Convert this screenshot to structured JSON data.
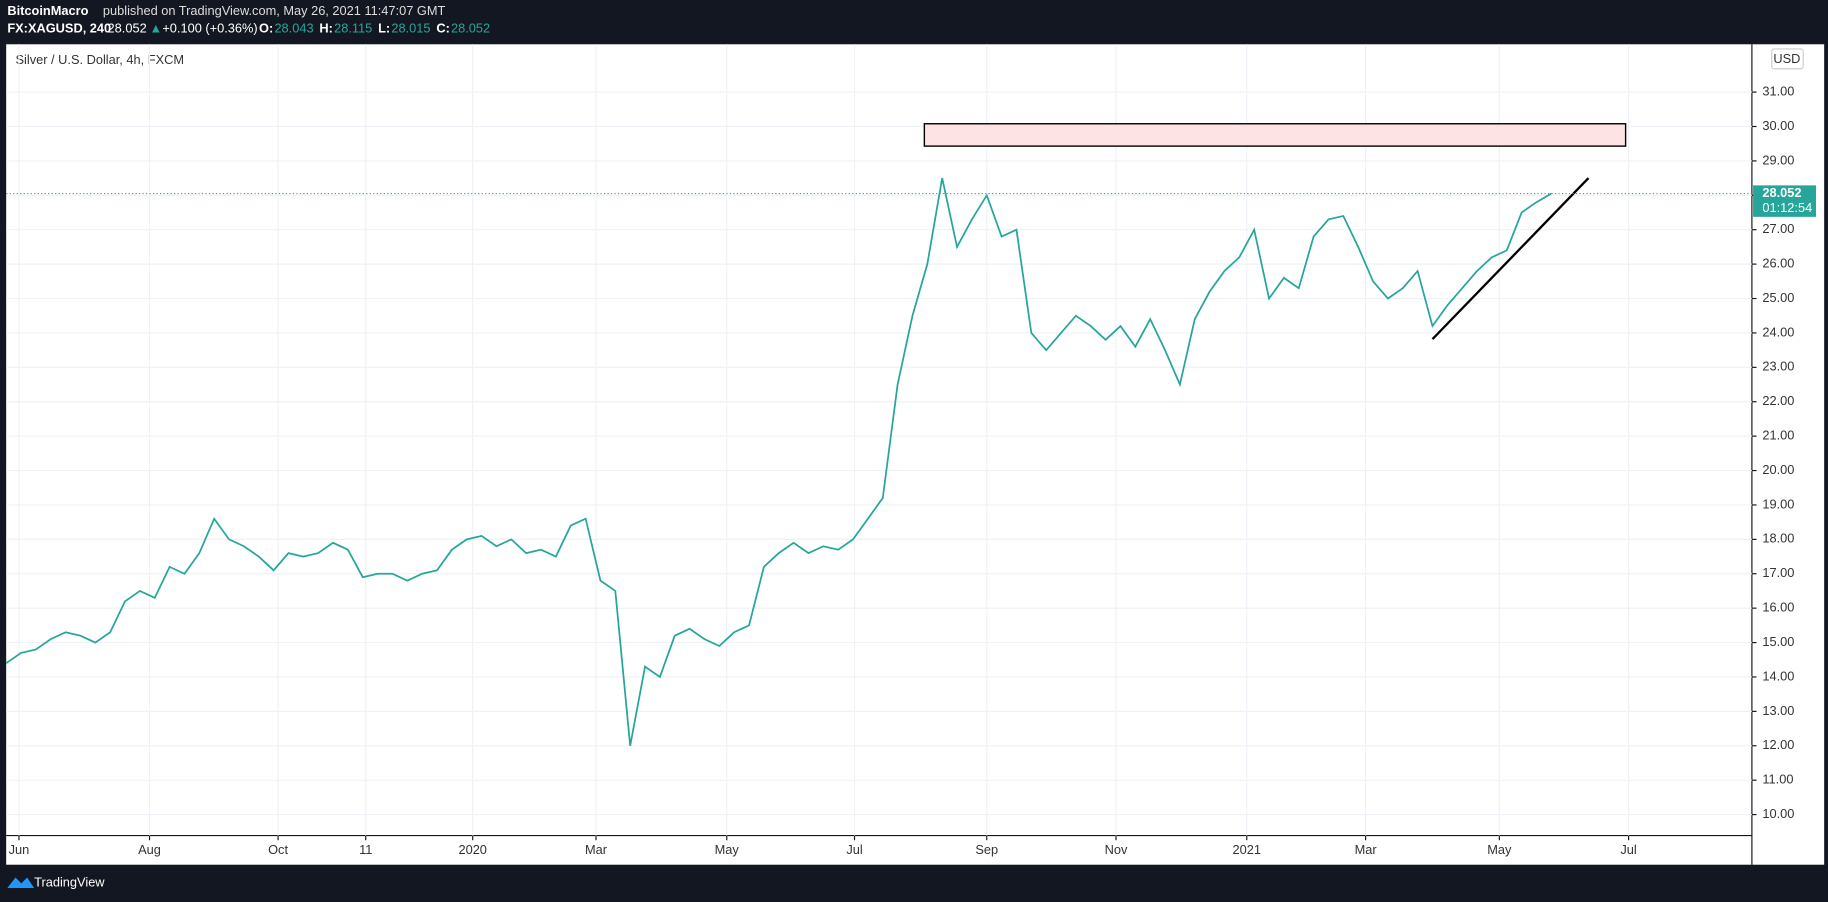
{
  "header": {
    "author": "BitcoinMacro",
    "published": "published on TradingView.com, May 26, 2021 11:47:07 GMT",
    "symbol": "FX:XAGUSD, 240",
    "last": "28.052",
    "change": "+0.100 (+0.36%)",
    "ohlc": [
      {
        "label": "O:",
        "value": "28.043"
      },
      {
        "label": "H:",
        "value": "28.115"
      },
      {
        "label": "L:",
        "value": "28.015"
      },
      {
        "label": "C:",
        "value": "28.052"
      }
    ]
  },
  "footer": {
    "brand": "TradingView"
  },
  "chart_data": {
    "type": "line",
    "title": "Silver / U.S. Dollar, 4h, FXCM",
    "currency": "USD",
    "series": [
      {
        "name": "XAGUSD",
        "color": "#26a69a",
        "values": [
          14.4,
          14.7,
          14.8,
          15.1,
          15.3,
          15.2,
          15.0,
          15.3,
          16.2,
          16.5,
          16.3,
          17.2,
          17.0,
          17.6,
          18.6,
          18.0,
          17.8,
          17.5,
          17.1,
          17.6,
          17.5,
          17.6,
          17.9,
          17.7,
          16.9,
          17.0,
          17.0,
          16.8,
          17.0,
          17.1,
          17.7,
          18.0,
          18.1,
          17.8,
          18.0,
          17.6,
          17.7,
          17.5,
          18.4,
          18.6,
          16.8,
          16.5,
          12.0,
          14.3,
          14.0,
          15.2,
          15.4,
          15.1,
          14.9,
          15.3,
          15.5,
          17.2,
          17.6,
          17.9,
          17.6,
          17.8,
          17.7,
          18.0,
          18.6,
          19.2,
          22.5,
          24.5,
          26.0,
          28.5,
          26.5,
          27.3,
          28.0,
          26.8,
          27.0,
          24.0,
          23.5,
          24.0,
          24.5,
          24.2,
          23.8,
          24.2,
          23.6,
          24.4,
          23.5,
          22.5,
          24.4,
          25.2,
          25.8,
          26.2,
          27.0,
          25.0,
          25.6,
          25.3,
          26.8,
          27.3,
          27.4,
          26.5,
          25.5,
          25.0,
          25.3,
          25.8,
          24.2,
          24.8,
          25.3,
          25.8,
          26.2,
          26.4,
          27.5,
          27.8,
          28.052
        ]
      }
    ],
    "last_price": {
      "price": 28.052,
      "countdown": "01:12:54"
    },
    "rectangle": {
      "x": [
        61.8,
        109.0
      ],
      "y": [
        29.43,
        30.08
      ],
      "color": "#fde3e3"
    },
    "trend_line": {
      "x": [
        96.0,
        106.5
      ],
      "y": [
        23.82,
        28.5
      ]
    },
    "xlim": [
      0,
      117.5
    ],
    "ylim": [
      9.39,
      32.39
    ],
    "xticks": [
      {
        "value": 0.86,
        "label": "Jun"
      },
      {
        "value": 9.65,
        "label": "Aug"
      },
      {
        "value": 18.3,
        "label": "Oct"
      },
      {
        "value": 24.2,
        "label": "11"
      },
      {
        "value": 31.4,
        "label": "2020"
      },
      {
        "value": 39.7,
        "label": "Mar"
      },
      {
        "value": 48.5,
        "label": "May"
      },
      {
        "value": 57.1,
        "label": "Jul"
      },
      {
        "value": 66.0,
        "label": "Sep"
      },
      {
        "value": 74.7,
        "label": "Nov"
      },
      {
        "value": 83.5,
        "label": "2021"
      },
      {
        "value": 91.5,
        "label": "Mar"
      },
      {
        "value": 100.5,
        "label": "May"
      },
      {
        "value": 109.2,
        "label": "Jul"
      }
    ],
    "yticks": [
      {
        "value": 10,
        "label": "10.00"
      },
      {
        "value": 11,
        "label": "11.00"
      },
      {
        "value": 12,
        "label": "12.00"
      },
      {
        "value": 13,
        "label": "13.00"
      },
      {
        "value": 14,
        "label": "14.00"
      },
      {
        "value": 15,
        "label": "15.00"
      },
      {
        "value": 16,
        "label": "16.00"
      },
      {
        "value": 17,
        "label": "17.00"
      },
      {
        "value": 18,
        "label": "18.00"
      },
      {
        "value": 19,
        "label": "19.00"
      },
      {
        "value": 20,
        "label": "20.00"
      },
      {
        "value": 21,
        "label": "21.00"
      },
      {
        "value": 22,
        "label": "22.00"
      },
      {
        "value": 23,
        "label": "23.00"
      },
      {
        "value": 24,
        "label": "24.00"
      },
      {
        "value": 25,
        "label": "25.00"
      },
      {
        "value": 26,
        "label": "26.00"
      },
      {
        "value": 27,
        "label": "27.00"
      },
      {
        "value": 28,
        "label": "28.00"
      },
      {
        "value": 29,
        "label": "29.00"
      },
      {
        "value": 30,
        "label": "30.00"
      },
      {
        "value": 31,
        "label": "31.00"
      }
    ],
    "grid": true
  }
}
